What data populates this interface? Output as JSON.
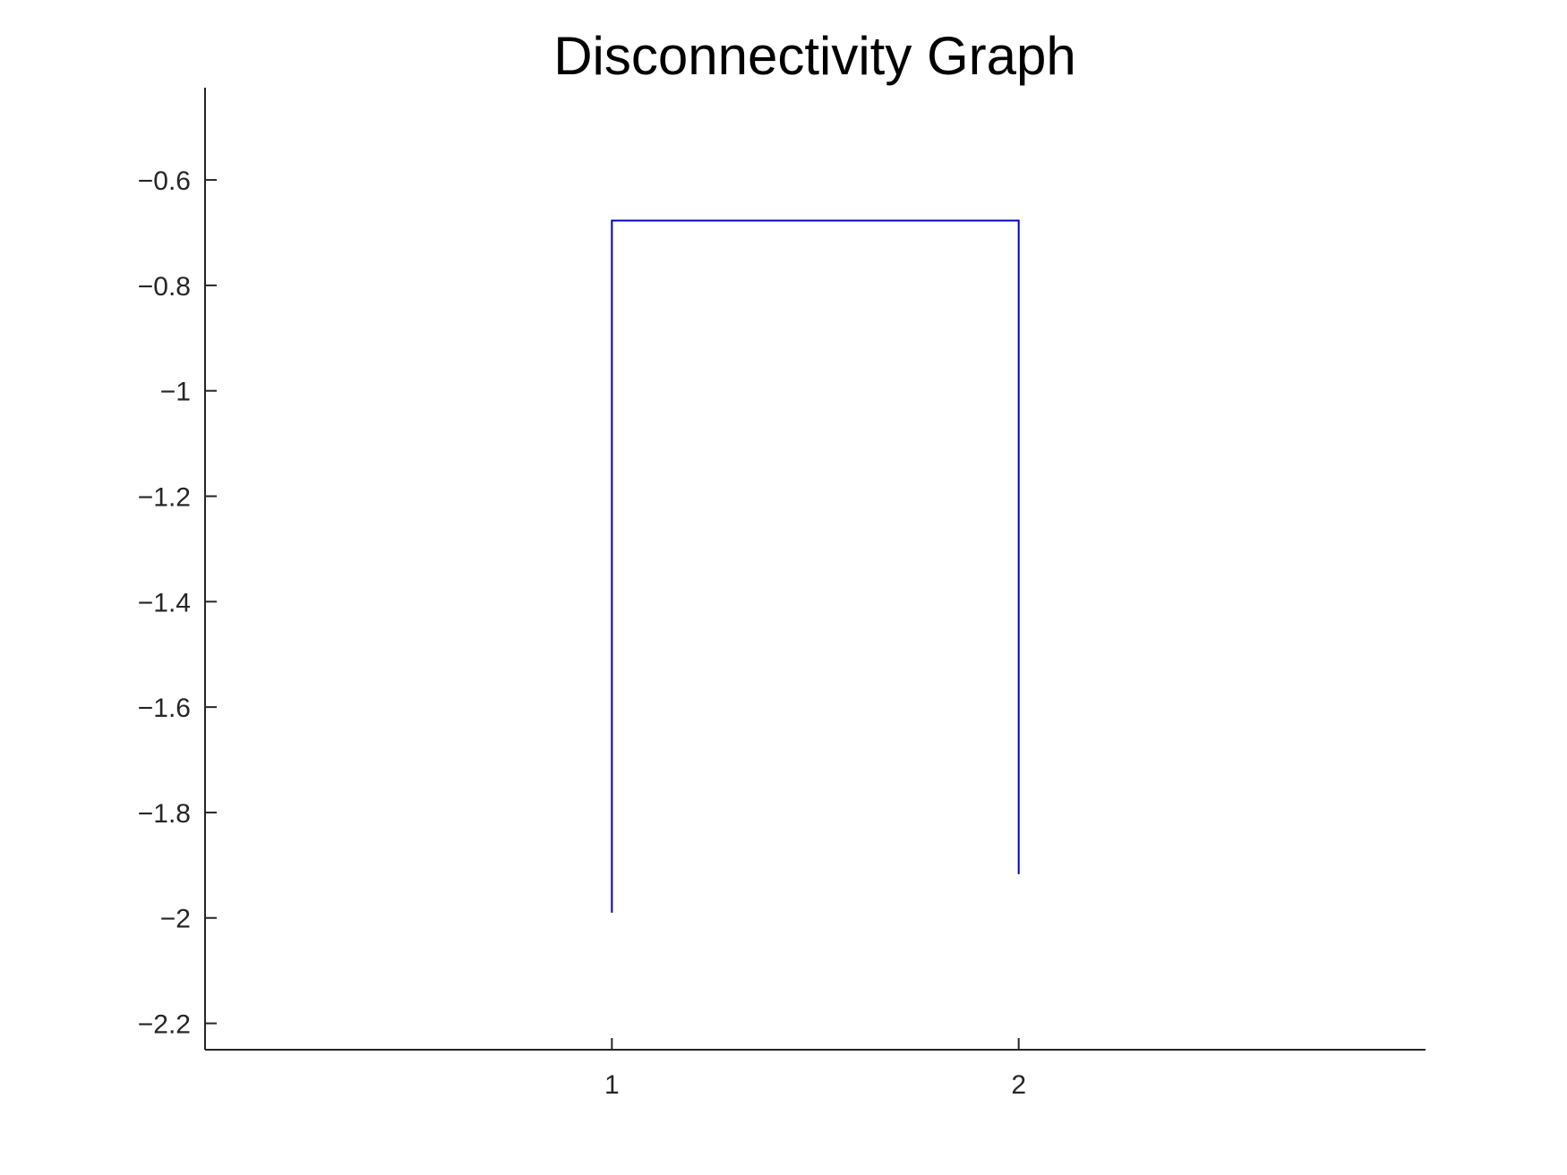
{
  "chart_data": {
    "type": "line",
    "title": "Disconnectivity Graph",
    "xlabel": "",
    "ylabel": "",
    "xlim": [
      0,
      3
    ],
    "ylim": [
      -2.25,
      -0.425
    ],
    "x_ticks": [
      1,
      2
    ],
    "x_tick_labels": [
      "1",
      "2"
    ],
    "y_ticks": [
      -2.2,
      -2.0,
      -1.8,
      -1.6,
      -1.4,
      -1.2,
      -1.0,
      -0.8,
      -0.6
    ],
    "y_tick_labels": [
      "−2.2",
      "−2",
      "−1.8",
      "−1.6",
      "−1.4",
      "−1.2",
      "−1",
      "−0.8",
      "−0.6"
    ],
    "grid": false,
    "line_color": "#0000cc",
    "series": [
      {
        "x": [
          1,
          1,
          2,
          2
        ],
        "y": [
          -1.99,
          -0.677,
          -0.677,
          -1.917
        ]
      }
    ]
  }
}
